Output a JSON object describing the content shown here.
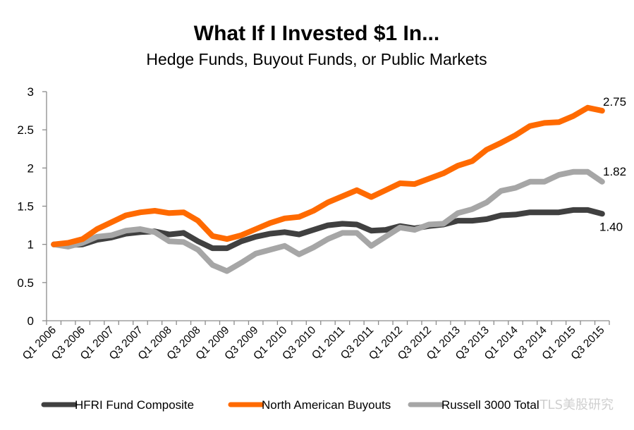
{
  "chart_data": {
    "type": "line",
    "title": "What If I Invested $1 In...",
    "subtitle": "Hedge Funds, Buyout Funds, or Public Markets",
    "xlabel": "",
    "ylabel": "",
    "ylim": [
      0,
      3
    ],
    "yticks": [
      "0",
      "0.5",
      "1",
      "1.5",
      "2",
      "2.5",
      "3"
    ],
    "ytick_values": [
      0,
      0.5,
      1,
      1.5,
      2,
      2.5,
      3
    ],
    "grid": false,
    "legend_position": "bottom",
    "categories": [
      "Q1 2006",
      "Q2 2006",
      "Q3 2006",
      "Q4 2006",
      "Q1 2007",
      "Q2 2007",
      "Q3 2007",
      "Q4 2007",
      "Q1 2008",
      "Q2 2008",
      "Q3 2008",
      "Q4 2008",
      "Q1 2009",
      "Q2 2009",
      "Q3 2009",
      "Q4 2009",
      "Q1 2010",
      "Q2 2010",
      "Q3 2010",
      "Q4 2010",
      "Q1 2011",
      "Q2 2011",
      "Q3 2011",
      "Q4 2011",
      "Q1 2012",
      "Q2 2012",
      "Q3 2012",
      "Q4 2012",
      "Q1 2013",
      "Q2 2013",
      "Q3 2013",
      "Q4 2013",
      "Q1 2014",
      "Q2 2014",
      "Q3 2014",
      "Q4 2014",
      "Q1 2015",
      "Q2 2015",
      "Q3 2015"
    ],
    "xtick_labels": [
      "Q1 2006",
      "Q3 2006",
      "Q1 2007",
      "Q3 2007",
      "Q1 2008",
      "Q3 2008",
      "Q1 2009",
      "Q3 2009",
      "Q1 2010",
      "Q3 2010",
      "Q1 2011",
      "Q3 2011",
      "Q1 2012",
      "Q3 2012",
      "Q1 2013",
      "Q3 2013",
      "Q1 2014",
      "Q3 2014",
      "Q1 2015",
      "Q3 2015"
    ],
    "series": [
      {
        "name": "HFRI Fund Composite",
        "color": "#404040",
        "end_label": "1.40",
        "values": [
          1.0,
          0.99,
          1.0,
          1.06,
          1.09,
          1.14,
          1.16,
          1.17,
          1.13,
          1.15,
          1.04,
          0.95,
          0.95,
          1.04,
          1.1,
          1.14,
          1.16,
          1.13,
          1.19,
          1.25,
          1.27,
          1.26,
          1.18,
          1.19,
          1.24,
          1.21,
          1.24,
          1.26,
          1.31,
          1.31,
          1.33,
          1.38,
          1.39,
          1.42,
          1.42,
          1.42,
          1.45,
          1.45,
          1.4
        ]
      },
      {
        "name": "North American Buyouts",
        "color": "#FF6A00",
        "end_label": "2.75",
        "values": [
          1.0,
          1.02,
          1.07,
          1.2,
          1.29,
          1.38,
          1.42,
          1.44,
          1.41,
          1.42,
          1.31,
          1.11,
          1.07,
          1.12,
          1.2,
          1.28,
          1.34,
          1.36,
          1.44,
          1.55,
          1.63,
          1.71,
          1.62,
          1.71,
          1.8,
          1.79,
          1.86,
          1.93,
          2.03,
          2.09,
          2.24,
          2.33,
          2.43,
          2.55,
          2.59,
          2.6,
          2.68,
          2.79,
          2.75
        ]
      },
      {
        "name": "Russell 3000 Total",
        "color": "#A6A6A6",
        "end_label": "1.82",
        "values": [
          1.0,
          0.97,
          1.02,
          1.1,
          1.12,
          1.18,
          1.2,
          1.16,
          1.04,
          1.03,
          0.93,
          0.73,
          0.65,
          0.76,
          0.88,
          0.93,
          0.98,
          0.87,
          0.96,
          1.07,
          1.15,
          1.15,
          0.98,
          1.1,
          1.22,
          1.19,
          1.26,
          1.27,
          1.41,
          1.46,
          1.55,
          1.7,
          1.74,
          1.82,
          1.82,
          1.91,
          1.95,
          1.95,
          1.82
        ]
      }
    ]
  },
  "watermark": "TLS美股研究"
}
